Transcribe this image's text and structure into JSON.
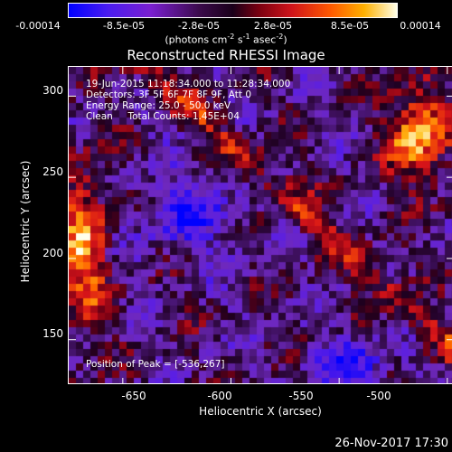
{
  "colorbar": {
    "tick_labels": [
      "-0.00014",
      "-8.5e-05",
      "-2.8e-05",
      "2.8e-05",
      "8.5e-05",
      "0.00014"
    ],
    "tick_values": [
      -0.00014,
      -8.5e-05,
      -2.8e-05,
      2.8e-05,
      8.5e-05,
      0.00014
    ],
    "range": [
      -0.00014,
      0.00014
    ],
    "units_prefix": "(photons cm",
    "units_exp1": "-2",
    "units_mid": " s",
    "units_exp2": "-1",
    "units_mid2": " asec",
    "units_exp3": "-2",
    "units_suffix": ")",
    "colors": [
      "#0000ff",
      "#7a1fd0",
      "#1a001a",
      "#d0141a",
      "#ff8c00",
      "#ffffe8"
    ]
  },
  "chart_data": {
    "type": "heatmap",
    "title": "Reconstructed RHESSI Image",
    "xlabel": "Heliocentric X (arcsec)",
    "ylabel": "Heliocentric Y (arcsec)",
    "xlim": [
      -675,
      -497
    ],
    "ylim": [
      122,
      318
    ],
    "x_ticks": [
      -650,
      -600,
      -550,
      -500
    ],
    "x_tick_labels": [
      "-650",
      "-600",
      "-550",
      "-500"
    ],
    "y_ticks": [
      150,
      200,
      250,
      300
    ],
    "y_tick_labels": [
      "150",
      "200",
      "250",
      "300"
    ],
    "annotations": {
      "time": "19-Jun-2015 11:18:34.000 to 11:28:34.000",
      "detectors": "Detectors: 3F 5F 6F 7F 8F 9F, Att 0",
      "energy": "Energy Range: 25.0 - 50.0 keV",
      "method": "Clean     Total Counts: 1.45E+04",
      "peak": "Position of Peak = [-536,267]"
    },
    "peak_position": [
      -536,
      267
    ]
  },
  "footer": {
    "date": "26-Nov-2017 17:30"
  }
}
